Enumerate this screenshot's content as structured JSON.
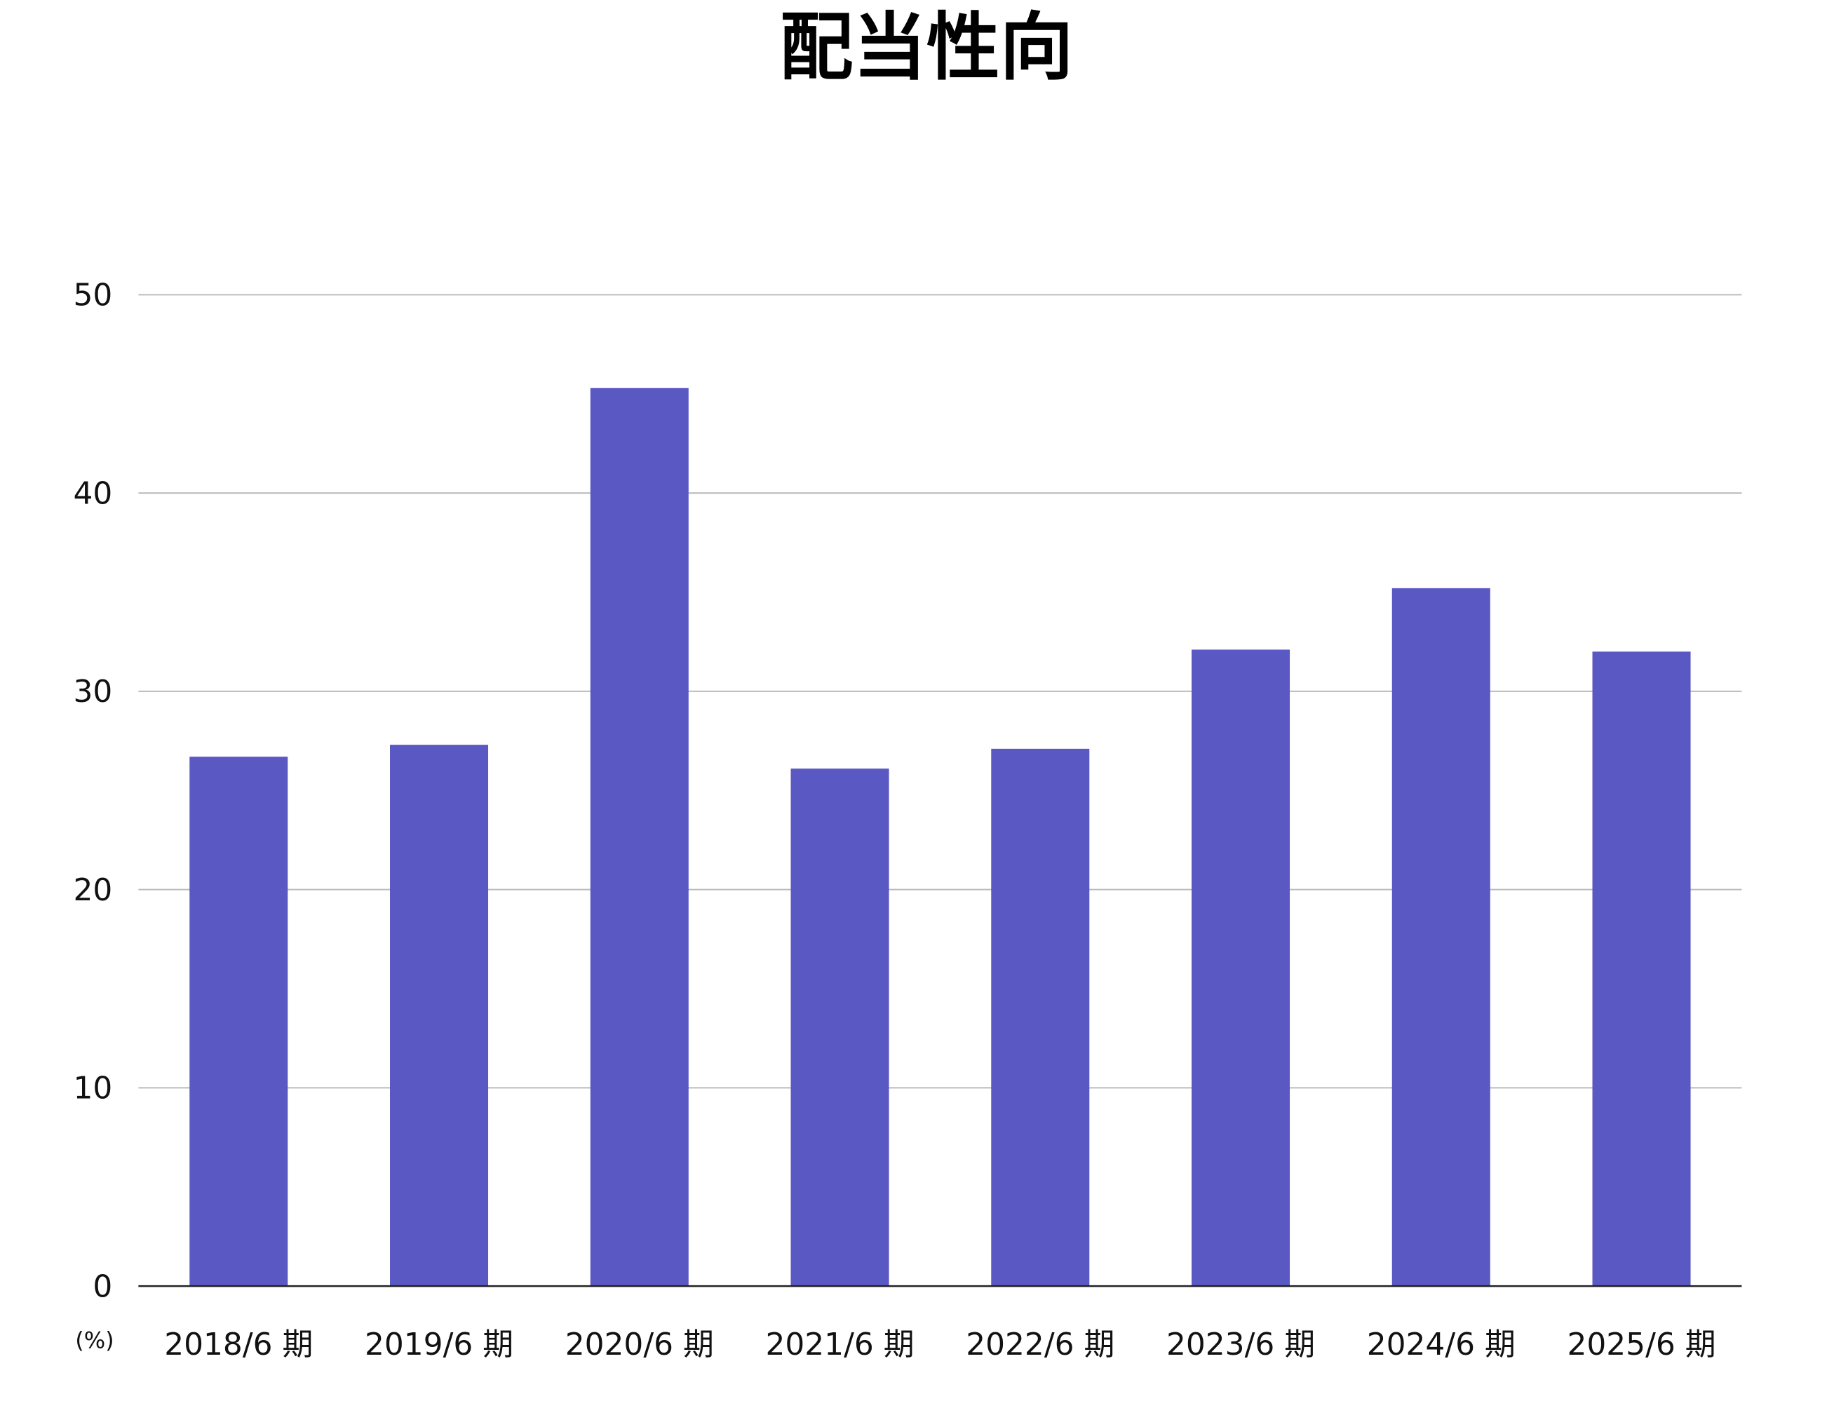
{
  "chart_data": {
    "type": "bar",
    "title": "配当性向",
    "y_unit": "(%)",
    "categories": [
      "2018/6 期",
      "2019/6 期",
      "2020/6 期",
      "2021/6 期",
      "2022/6 期",
      "2023/6 期",
      "2024/6 期",
      "2025/6 期"
    ],
    "values": [
      26.7,
      27.3,
      45.3,
      26.1,
      27.1,
      32.1,
      35.2,
      32.0
    ],
    "color": "#5a58c2",
    "ylim": [
      0,
      50
    ],
    "yticks": [
      0,
      10,
      20,
      30,
      40,
      50
    ],
    "grid": true
  }
}
